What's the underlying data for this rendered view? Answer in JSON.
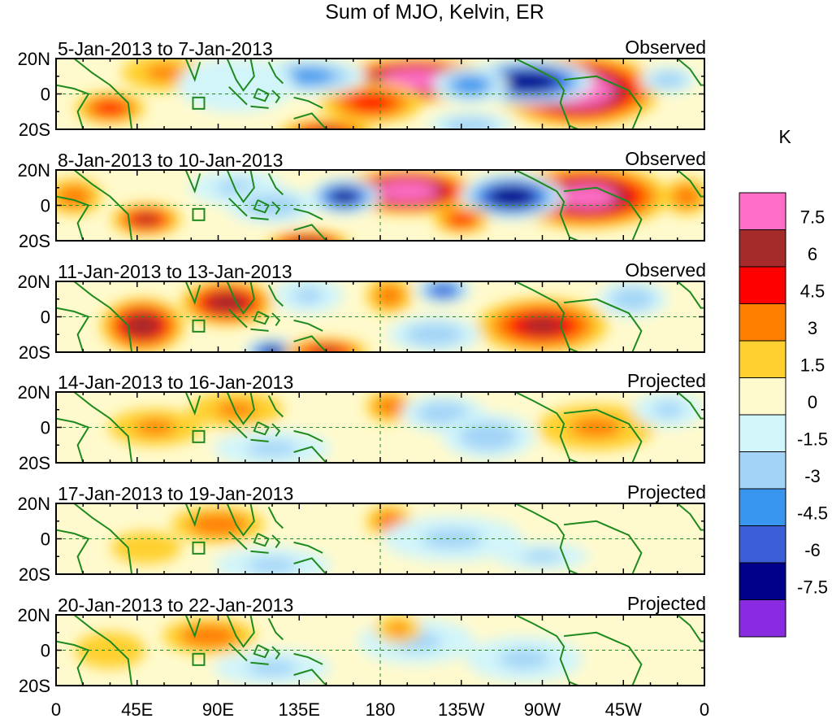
{
  "chart_data": {
    "type": "heatmap",
    "title": "Sum of MJO, Kelvin, ER",
    "units_label": "K",
    "x_tick_labels": [
      "0",
      "45E",
      "90E",
      "135E",
      "180",
      "135W",
      "90W",
      "45W",
      "0"
    ],
    "x_tick_lons": [
      0,
      45,
      90,
      135,
      180,
      225,
      270,
      315,
      360
    ],
    "y_tick_labels": [
      "20N",
      "0",
      "20S"
    ],
    "y_tick_lats": [
      20,
      0,
      -20
    ],
    "xlim": [
      0,
      360
    ],
    "ylim": [
      -20,
      20
    ],
    "colorbar": {
      "labels": [
        "7.5",
        "6",
        "4.5",
        "3",
        "1.5",
        "0",
        "-1.5",
        "-3",
        "-4.5",
        "-6",
        "-7.5"
      ],
      "colors": [
        "#ff6ec7",
        "#a52a2a",
        "#ff0000",
        "#ff7f00",
        "#ffd02f",
        "#fffacd",
        "#d2f5fa",
        "#a3d4f7",
        "#3896ee",
        "#3a5fd8",
        "#00008b",
        "#8a2be2"
      ]
    },
    "panels": [
      {
        "dates": "5-Jan-2013 to 7-Jan-2013",
        "status": "Observed",
        "blobs": [
          {
            "lon": 200,
            "lat": 8,
            "rx": 35,
            "ry": 10,
            "v": 8
          },
          {
            "lon": 290,
            "lat": 2,
            "rx": 35,
            "ry": 16,
            "v": 8
          },
          {
            "lon": 262,
            "lat": 7,
            "rx": 28,
            "ry": 10,
            "v": -8
          },
          {
            "lon": 230,
            "lat": 5,
            "rx": 16,
            "ry": 8,
            "v": -4.5
          },
          {
            "lon": 175,
            "lat": -5,
            "rx": 22,
            "ry": 9,
            "v": 4
          },
          {
            "lon": 140,
            "lat": 10,
            "rx": 25,
            "ry": 8,
            "v": -4
          },
          {
            "lon": 30,
            "lat": -8,
            "rx": 15,
            "ry": 7,
            "v": 4
          },
          {
            "lon": 150,
            "lat": -22,
            "rx": 20,
            "ry": 6,
            "v": 5
          },
          {
            "lon": 60,
            "lat": 12,
            "rx": 18,
            "ry": 8,
            "v": 2
          },
          {
            "lon": 340,
            "lat": 8,
            "rx": 12,
            "ry": 6,
            "v": -3
          },
          {
            "lon": 100,
            "lat": 5,
            "rx": 25,
            "ry": 12,
            "v": -1.5
          },
          {
            "lon": 230,
            "lat": -18,
            "rx": 18,
            "ry": 6,
            "v": -3
          }
        ]
      },
      {
        "dates": "8-Jan-2013 to 10-Jan-2013",
        "status": "Observed",
        "blobs": [
          {
            "lon": 195,
            "lat": 8,
            "rx": 30,
            "ry": 10,
            "v": 8
          },
          {
            "lon": 295,
            "lat": 5,
            "rx": 35,
            "ry": 14,
            "v": 7
          },
          {
            "lon": 253,
            "lat": 5,
            "rx": 22,
            "ry": 10,
            "v": -8
          },
          {
            "lon": 160,
            "lat": 5,
            "rx": 15,
            "ry": 8,
            "v": -7
          },
          {
            "lon": 50,
            "lat": -8,
            "rx": 15,
            "ry": 7,
            "v": 5
          },
          {
            "lon": 225,
            "lat": -8,
            "rx": 12,
            "ry": 6,
            "v": 4
          },
          {
            "lon": 140,
            "lat": -22,
            "rx": 18,
            "ry": 6,
            "v": 6
          },
          {
            "lon": 10,
            "lat": 5,
            "rx": 12,
            "ry": 8,
            "v": 3
          },
          {
            "lon": 100,
            "lat": 10,
            "rx": 20,
            "ry": 8,
            "v": -2
          },
          {
            "lon": 120,
            "lat": 0,
            "rx": 20,
            "ry": 8,
            "v": -3
          },
          {
            "lon": 350,
            "lat": 5,
            "rx": 10,
            "ry": 8,
            "v": 3
          }
        ]
      },
      {
        "dates": "11-Jan-2013 to 13-Jan-2013",
        "status": "Observed",
        "blobs": [
          {
            "lon": 95,
            "lat": 8,
            "rx": 20,
            "ry": 10,
            "v": 6
          },
          {
            "lon": 48,
            "lat": -5,
            "rx": 18,
            "ry": 12,
            "v": 6
          },
          {
            "lon": 270,
            "lat": -5,
            "rx": 28,
            "ry": 12,
            "v": 5
          },
          {
            "lon": 185,
            "lat": 12,
            "rx": 10,
            "ry": 8,
            "v": 3
          },
          {
            "lon": 215,
            "lat": 15,
            "rx": 12,
            "ry": 6,
            "v": -6
          },
          {
            "lon": 120,
            "lat": -20,
            "rx": 12,
            "ry": 6,
            "v": -7
          },
          {
            "lon": 150,
            "lat": -20,
            "rx": 18,
            "ry": 6,
            "v": 5
          },
          {
            "lon": 320,
            "lat": 10,
            "rx": 15,
            "ry": 8,
            "v": -3
          },
          {
            "lon": 210,
            "lat": -10,
            "rx": 20,
            "ry": 8,
            "v": -3
          },
          {
            "lon": 140,
            "lat": 12,
            "rx": 15,
            "ry": 8,
            "v": -2
          }
        ]
      },
      {
        "dates": "14-Jan-2013 to 16-Jan-2013",
        "status": "Projected",
        "blobs": [
          {
            "lon": 185,
            "lat": 12,
            "rx": 10,
            "ry": 7,
            "v": 3
          },
          {
            "lon": 215,
            "lat": 8,
            "rx": 18,
            "ry": 8,
            "v": -3
          },
          {
            "lon": 240,
            "lat": -5,
            "rx": 20,
            "ry": 10,
            "v": -3
          },
          {
            "lon": 300,
            "lat": 0,
            "rx": 25,
            "ry": 10,
            "v": 2
          },
          {
            "lon": 120,
            "lat": -12,
            "rx": 25,
            "ry": 8,
            "v": -2
          },
          {
            "lon": 55,
            "lat": 0,
            "rx": 20,
            "ry": 8,
            "v": 2
          },
          {
            "lon": 100,
            "lat": 10,
            "rx": 20,
            "ry": 8,
            "v": 2
          },
          {
            "lon": 340,
            "lat": 10,
            "rx": 15,
            "ry": 8,
            "v": -2
          }
        ]
      },
      {
        "dates": "17-Jan-2013 to 19-Jan-2013",
        "status": "Projected",
        "blobs": [
          {
            "lon": 185,
            "lat": 10,
            "rx": 10,
            "ry": 7,
            "v": 3
          },
          {
            "lon": 90,
            "lat": 8,
            "rx": 20,
            "ry": 8,
            "v": 3
          },
          {
            "lon": 220,
            "lat": 0,
            "rx": 30,
            "ry": 10,
            "v": -2
          },
          {
            "lon": 120,
            "lat": -15,
            "rx": 25,
            "ry": 8,
            "v": -2
          },
          {
            "lon": 270,
            "lat": -10,
            "rx": 20,
            "ry": 6,
            "v": -2
          },
          {
            "lon": 50,
            "lat": -5,
            "rx": 15,
            "ry": 7,
            "v": 1.5
          }
        ]
      },
      {
        "dates": "20-Jan-2013 to 22-Jan-2013",
        "status": "Projected",
        "blobs": [
          {
            "lon": 85,
            "lat": 8,
            "rx": 20,
            "ry": 8,
            "v": 3
          },
          {
            "lon": 200,
            "lat": 5,
            "rx": 25,
            "ry": 10,
            "v": -2
          },
          {
            "lon": 260,
            "lat": -5,
            "rx": 25,
            "ry": 10,
            "v": -2
          },
          {
            "lon": 120,
            "lat": -10,
            "rx": 25,
            "ry": 8,
            "v": -2
          },
          {
            "lon": 190,
            "lat": 12,
            "rx": 10,
            "ry": 6,
            "v": 2
          },
          {
            "lon": 30,
            "lat": 0,
            "rx": 15,
            "ry": 8,
            "v": 1.5
          }
        ]
      }
    ]
  }
}
